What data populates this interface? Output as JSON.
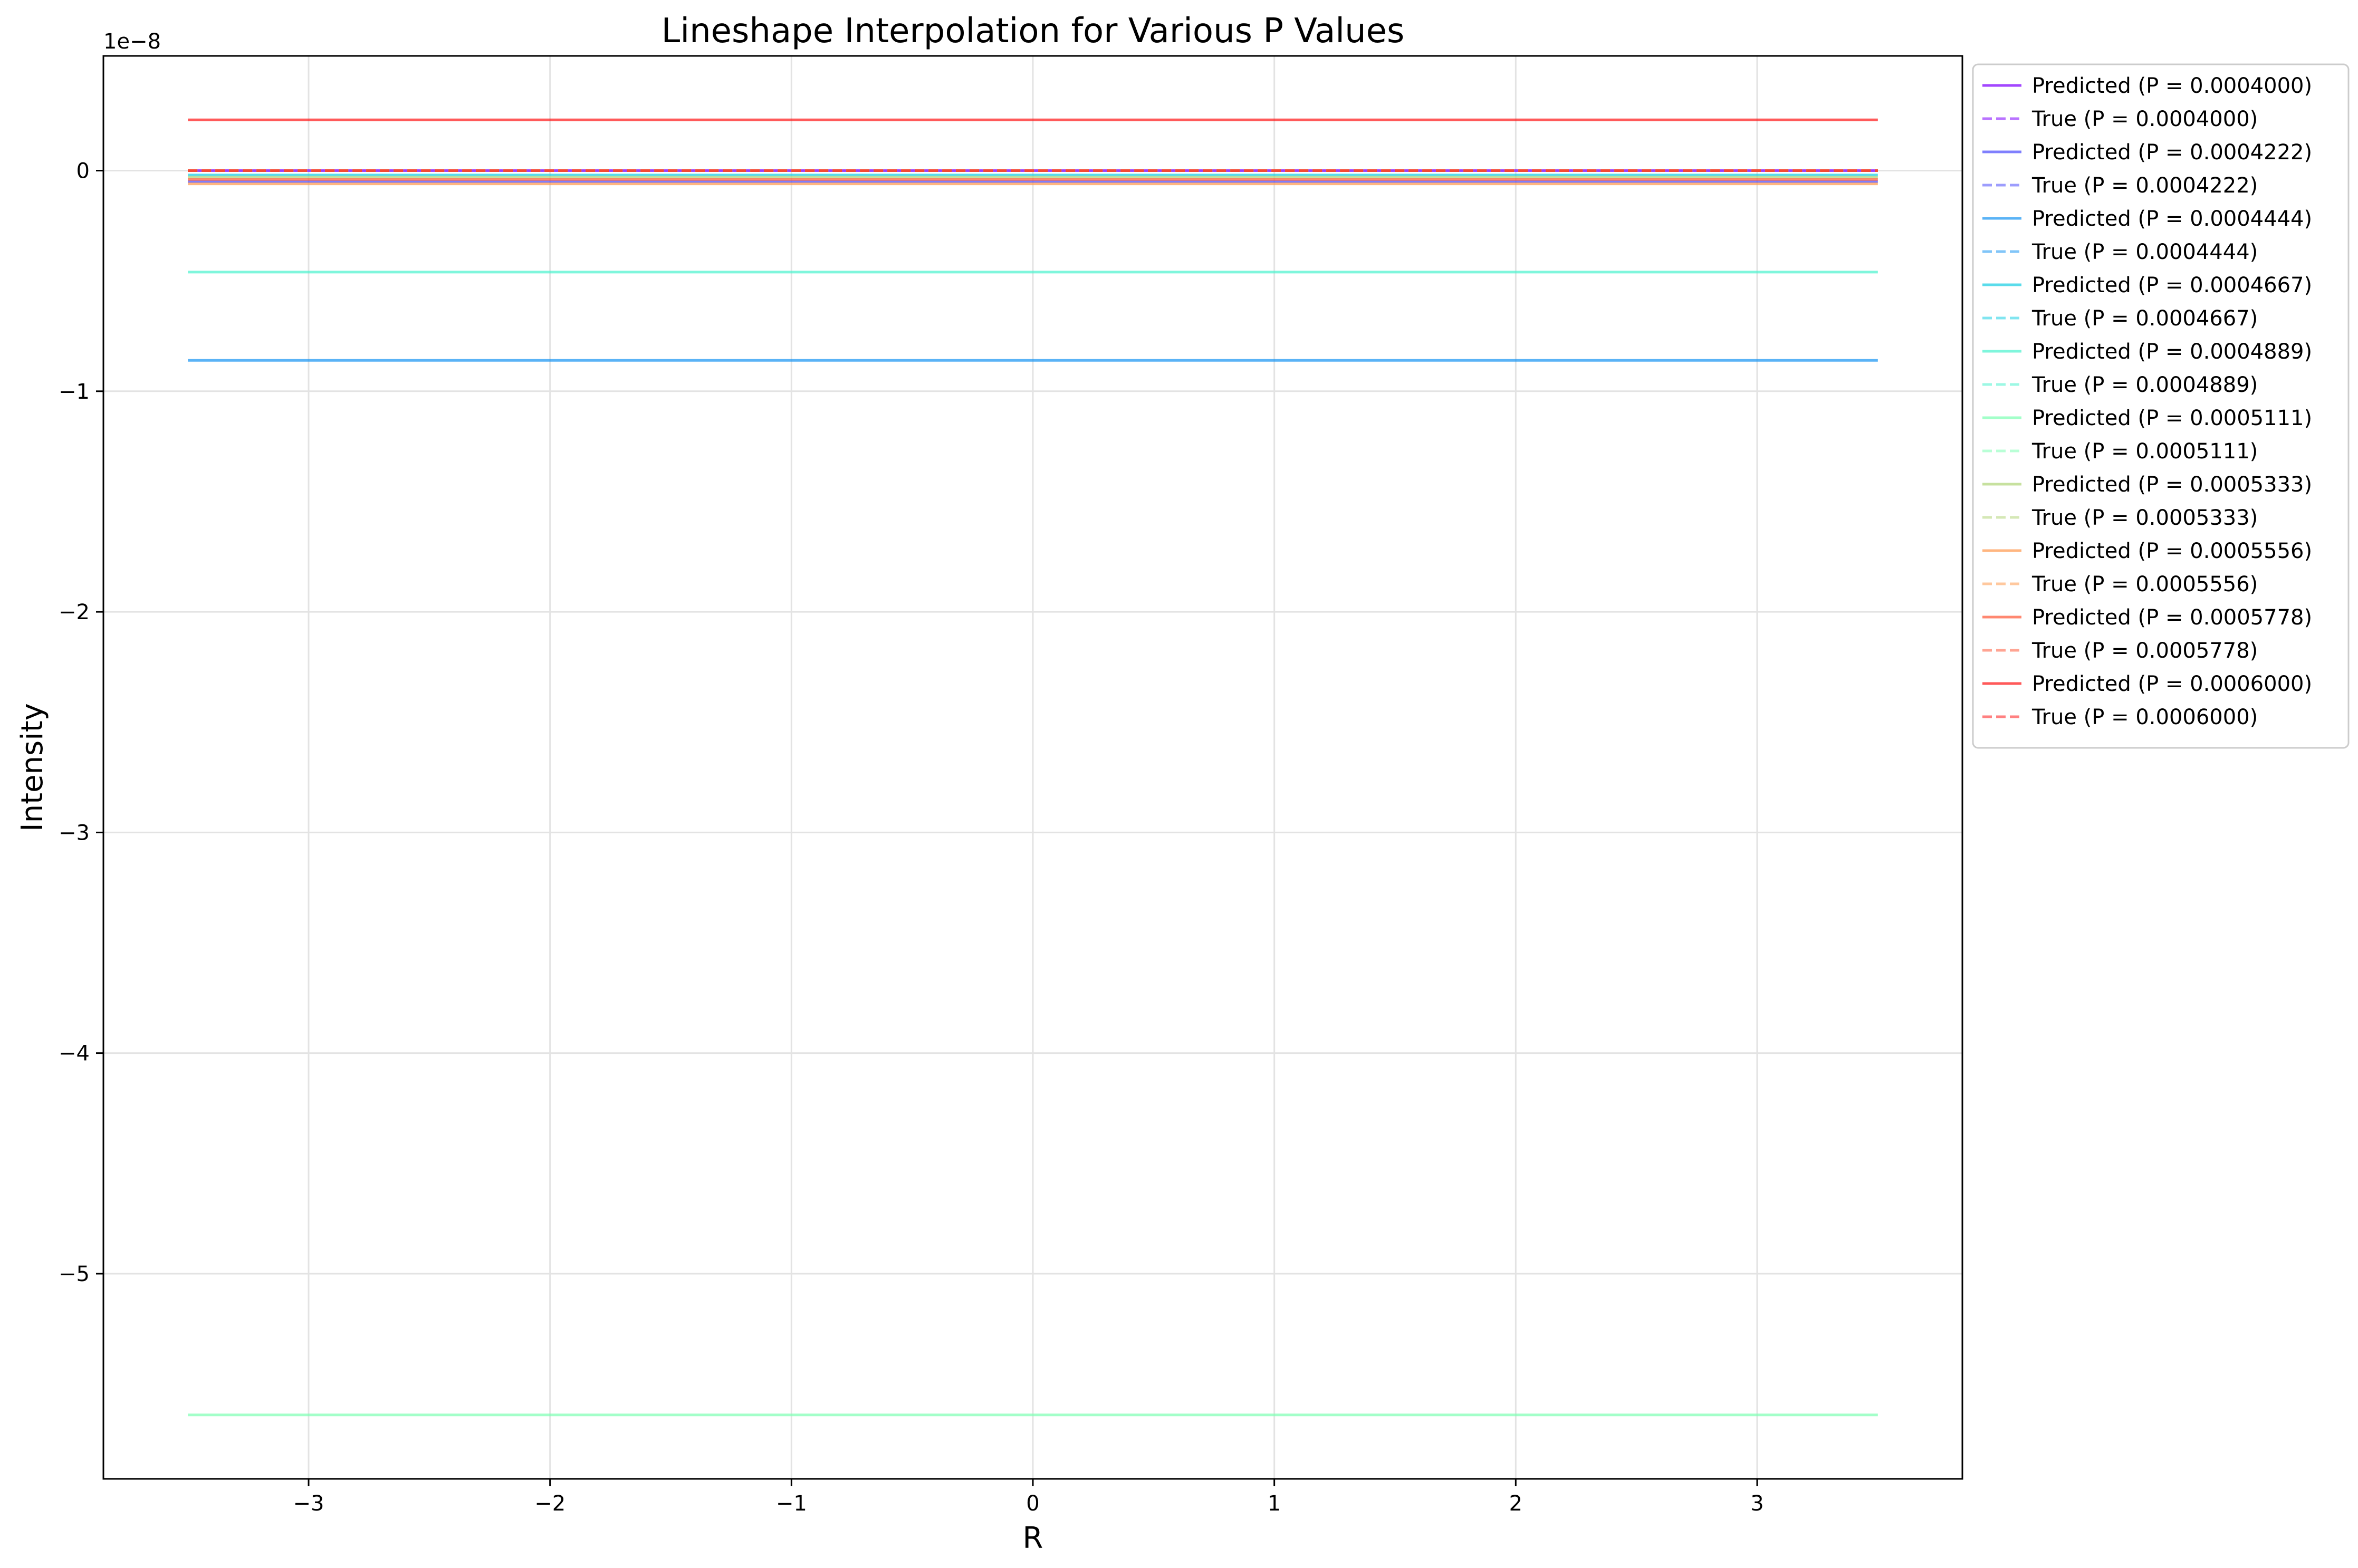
{
  "chart_data": {
    "type": "line",
    "title": "Lineshape Interpolation for Various P Values",
    "xlabel": "R",
    "ylabel": "Intensity",
    "y_offset_label": "1e−8",
    "xlim": [
      -3.85,
      3.85
    ],
    "ylim": [
      -5.93,
      0.52
    ],
    "x_ticks": [
      -3,
      -2,
      -1,
      0,
      1,
      2,
      3
    ],
    "x_tick_labels": [
      "−3",
      "−2",
      "−1",
      "0",
      "1",
      "2",
      "3"
    ],
    "y_ticks": [
      0,
      -1,
      -2,
      -3,
      -4,
      -5
    ],
    "y_tick_labels": [
      "0",
      "−1",
      "−2",
      "−3",
      "−4",
      "−5"
    ],
    "x": [
      -3.5,
      3.5
    ],
    "grid": true,
    "legend_position": "outside upper right",
    "series": [
      {
        "name": "Predicted (P = 0.0004000)",
        "style": "solid",
        "color": "#8000ff",
        "values": [
          0.0,
          0.0
        ]
      },
      {
        "name": "True (P = 0.0004000)",
        "style": "dashed",
        "color": "#8000ff",
        "values": [
          0.0,
          0.0
        ]
      },
      {
        "name": "Predicted (P = 0.0004222)",
        "style": "solid",
        "color": "#4d4dfc",
        "values": [
          -0.05,
          -0.05
        ]
      },
      {
        "name": "True (P = 0.0004222)",
        "style": "dashed",
        "color": "#4d4dfc",
        "values": [
          0.0,
          0.0
        ]
      },
      {
        "name": "Predicted (P = 0.0004444)",
        "style": "solid",
        "color": "#1a96f3",
        "values": [
          -0.86,
          -0.86
        ]
      },
      {
        "name": "True (P = 0.0004444)",
        "style": "dashed",
        "color": "#1a96f3",
        "values": [
          0.0,
          0.0
        ]
      },
      {
        "name": "Predicted (P = 0.0004667)",
        "style": "solid",
        "color": "#1acfe3",
        "values": [
          -0.02,
          -0.02
        ]
      },
      {
        "name": "True (P = 0.0004667)",
        "style": "dashed",
        "color": "#1acfe3",
        "values": [
          0.0,
          0.0
        ]
      },
      {
        "name": "Predicted (P = 0.0004889)",
        "style": "solid",
        "color": "#4df3ce",
        "values": [
          -0.46,
          -0.46
        ]
      },
      {
        "name": "True (P = 0.0004889)",
        "style": "dashed",
        "color": "#4df3ce",
        "values": [
          0.0,
          0.0
        ]
      },
      {
        "name": "Predicted (P = 0.0005111)",
        "style": "solid",
        "color": "#80ffb4",
        "values": [
          -5.64,
          -5.64
        ]
      },
      {
        "name": "True (P = 0.0005111)",
        "style": "dashed",
        "color": "#80ffb4",
        "values": [
          0.0,
          0.0
        ]
      },
      {
        "name": "Predicted (P = 0.0005333)",
        "style": "solid",
        "color": "#b2d67a",
        "values": [
          -0.03,
          -0.03
        ]
      },
      {
        "name": "True (P = 0.0005333)",
        "style": "dashed",
        "color": "#b2d67a",
        "values": [
          0.0,
          0.0
        ]
      },
      {
        "name": "Predicted (P = 0.0005556)",
        "style": "solid",
        "color": "#ff9a4f",
        "values": [
          -0.06,
          -0.06
        ]
      },
      {
        "name": "True (P = 0.0005556)",
        "style": "dashed",
        "color": "#ff9a4f",
        "values": [
          0.0,
          0.0
        ]
      },
      {
        "name": "Predicted (P = 0.0005778)",
        "style": "solid",
        "color": "#ff5a3a",
        "values": [
          -0.04,
          -0.04
        ]
      },
      {
        "name": "True (P = 0.0005778)",
        "style": "dashed",
        "color": "#ff5a3a",
        "values": [
          0.0,
          0.0
        ]
      },
      {
        "name": "Predicted (P = 0.0006000)",
        "style": "solid",
        "color": "#ff1a1a",
        "values": [
          0.23,
          0.23
        ]
      },
      {
        "name": "True (P = 0.0006000)",
        "style": "dashed",
        "color": "#ff1a1a",
        "values": [
          0.0,
          0.0
        ]
      }
    ]
  }
}
